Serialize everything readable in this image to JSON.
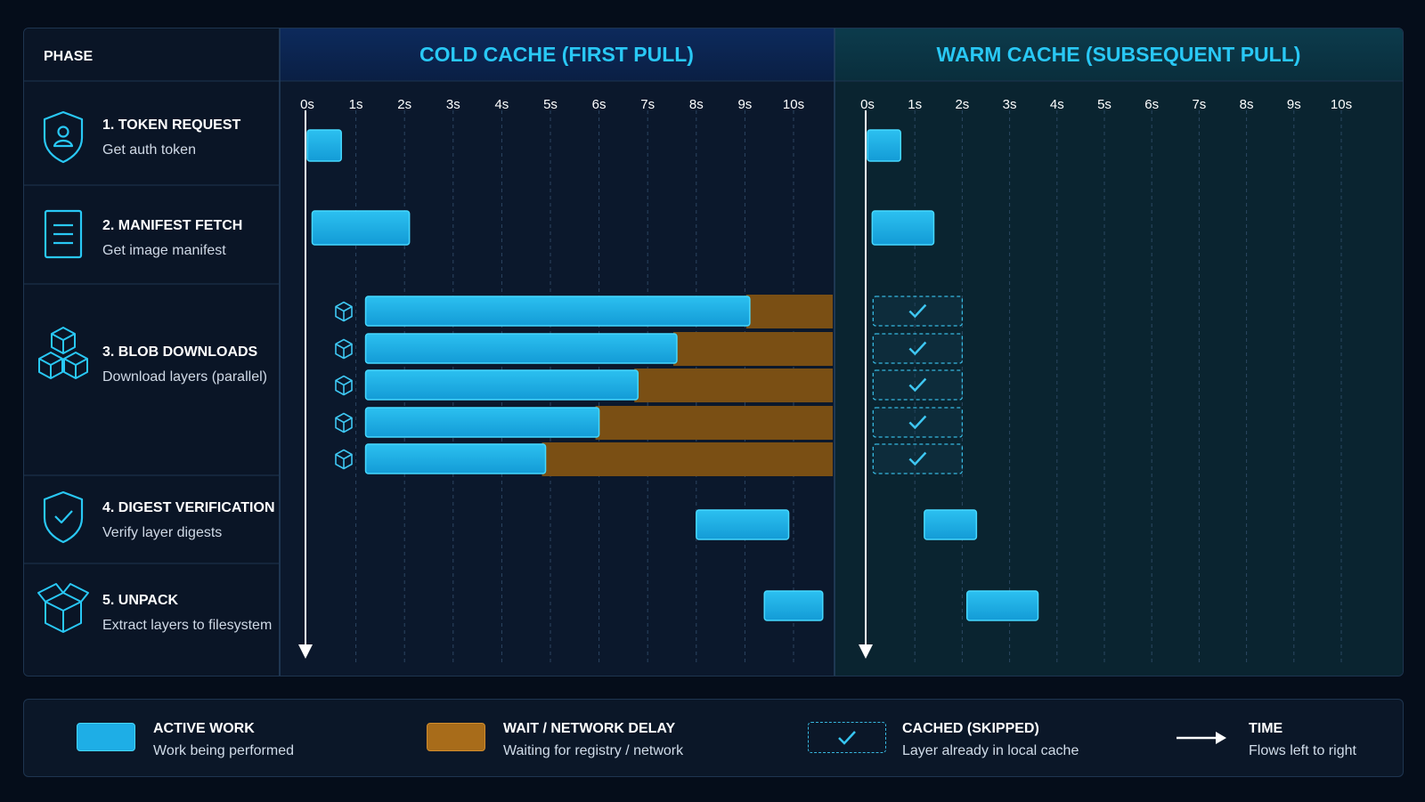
{
  "header": {
    "phase_label": "PHASE",
    "cold_title": "COLD CACHE (FIRST PULL)",
    "warm_title": "WARM CACHE (SUBSEQUENT PULL)"
  },
  "time_ticks": [
    "0s",
    "1s",
    "2s",
    "3s",
    "4s",
    "5s",
    "6s",
    "7s",
    "8s",
    "9s",
    "10s"
  ],
  "phases": [
    {
      "id": "token",
      "title": "1. TOKEN REQUEST",
      "subtitle": "Get auth token",
      "icon": "shield-user-icon"
    },
    {
      "id": "manifest",
      "title": "2. MANIFEST FETCH",
      "subtitle": "Get image manifest",
      "icon": "document-icon"
    },
    {
      "id": "blobs",
      "title": "3. BLOB DOWNLOADS",
      "subtitle": "Download layers (parallel)",
      "icon": "cubes-icon"
    },
    {
      "id": "digest",
      "title": "4. DIGEST VERIFICATION",
      "subtitle": "Verify layer digests",
      "icon": "shield-check-icon"
    },
    {
      "id": "unpack",
      "title": "5. UNPACK",
      "subtitle": "Extract layers to filesystem",
      "icon": "open-box-icon"
    }
  ],
  "chart_data": {
    "type": "gantt",
    "time_range": [
      0,
      10
    ],
    "cold_cache": {
      "token": {
        "start": 0.0,
        "end": 0.7
      },
      "manifest": {
        "start": 0.1,
        "end": 2.1
      },
      "blobs": [
        {
          "start": 1.2,
          "end": 9.1,
          "wait_end": 11.0
        },
        {
          "start": 1.2,
          "end": 7.6,
          "wait_end": 11.0
        },
        {
          "start": 1.2,
          "end": 6.8,
          "wait_end": 11.0
        },
        {
          "start": 1.2,
          "end": 6.0,
          "wait_end": 11.0
        },
        {
          "start": 1.2,
          "end": 4.9,
          "wait_end": 11.0
        }
      ],
      "digest": {
        "start": 8.0,
        "end": 9.9
      },
      "unpack": {
        "start": 9.4,
        "end": 10.6
      }
    },
    "warm_cache": {
      "token": {
        "start": 0.0,
        "end": 0.7
      },
      "manifest": {
        "start": 0.1,
        "end": 1.4
      },
      "blobs_cached": [
        {
          "start": 0.1,
          "end": 2.0
        },
        {
          "start": 0.1,
          "end": 2.0
        },
        {
          "start": 0.1,
          "end": 2.0
        },
        {
          "start": 0.1,
          "end": 2.0
        },
        {
          "start": 0.1,
          "end": 2.0
        }
      ],
      "digest": {
        "start": 1.2,
        "end": 2.3
      },
      "unpack": {
        "start": 2.1,
        "end": 3.6
      }
    },
    "colors": {
      "active": "#1eaee6",
      "active_border": "#46d8ff",
      "wait": "#7a4f14",
      "cached_border": "#37b8e0"
    }
  },
  "legend": [
    {
      "kind": "active",
      "title": "ACTIVE WORK",
      "subtitle": "Work being performed"
    },
    {
      "kind": "wait",
      "title": "WAIT / NETWORK DELAY",
      "subtitle": "Waiting for registry / network"
    },
    {
      "kind": "cached",
      "title": "CACHED (SKIPPED)",
      "subtitle": "Layer already in local cache"
    },
    {
      "kind": "time",
      "title": "TIME",
      "subtitle": "Flows left to right"
    }
  ]
}
